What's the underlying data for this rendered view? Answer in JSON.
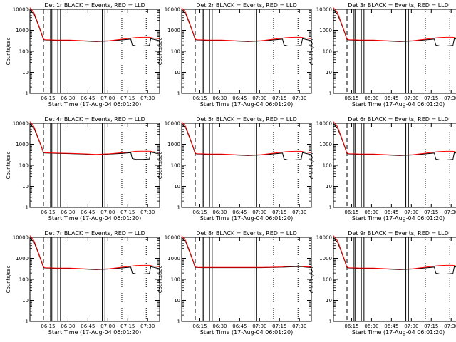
{
  "page": {
    "background": "#ffffff",
    "foreground": "#000000",
    "lld_color": "#ff0000"
  },
  "chart_data": {
    "type": "line",
    "grid": "3x3",
    "ylabel": "Counts/sec",
    "xlabel": "Start Time (17-Aug-04 06:01:20)",
    "y_scale": "log",
    "ylim": [
      1,
      10000
    ],
    "y_ticks": [
      "1",
      "10",
      "100",
      "1000",
      "10000"
    ],
    "xlim": [
      "06:01:20",
      "07:39:00"
    ],
    "x_ticks": [
      "06:15",
      "06:30",
      "06:45",
      "07:00",
      "07:15",
      "07:30"
    ],
    "legend_text": "BLACK = Events, RED = LLD",
    "series_names": [
      "Events",
      "LLD"
    ],
    "time_minutes_from_start": [
      0,
      3,
      6,
      9,
      10,
      11,
      12,
      15,
      20,
      30,
      40,
      50,
      55,
      60,
      70,
      76,
      77,
      80,
      85,
      90,
      91,
      92,
      97.7
    ],
    "marker_lines": {
      "dashed_minutes": [
        10.2
      ],
      "solid_minutes": [
        15.5,
        16.5,
        21,
        23,
        54.5,
        56.5
      ],
      "dotted_minutes": [
        69.2,
        87.6
      ]
    },
    "panels": [
      {
        "title": "Det 1r  BLACK = Events, RED = LLD",
        "events": [
          9000,
          6000,
          2000,
          600,
          380,
          350,
          345,
          340,
          330,
          330,
          310,
          290,
          300,
          310,
          350,
          380,
          200,
          180,
          180,
          190,
          400,
          390,
          320
        ],
        "lld": [
          12000,
          7000,
          2200,
          650,
          400,
          360,
          355,
          350,
          340,
          340,
          320,
          300,
          310,
          320,
          380,
          420,
          430,
          450,
          460,
          460,
          450,
          430,
          400
        ]
      },
      {
        "title": "Det 2r  BLACK = Events, RED = LLD",
        "events": [
          9000,
          6000,
          2000,
          600,
          380,
          350,
          345,
          340,
          330,
          330,
          310,
          290,
          300,
          310,
          350,
          380,
          200,
          180,
          180,
          190,
          400,
          390,
          320
        ],
        "lld": [
          12000,
          7000,
          2200,
          650,
          400,
          360,
          355,
          350,
          340,
          340,
          320,
          300,
          310,
          320,
          380,
          420,
          430,
          450,
          460,
          460,
          450,
          430,
          400
        ]
      },
      {
        "title": "Det 3r  BLACK = Events, RED = LLD",
        "events": [
          9000,
          6000,
          2000,
          600,
          380,
          350,
          345,
          340,
          330,
          330,
          310,
          290,
          300,
          310,
          350,
          380,
          200,
          180,
          180,
          190,
          400,
          390,
          320
        ],
        "lld": [
          12000,
          7000,
          2200,
          650,
          400,
          360,
          355,
          350,
          340,
          340,
          320,
          300,
          310,
          320,
          380,
          420,
          430,
          450,
          460,
          460,
          450,
          430,
          400
        ]
      },
      {
        "title": "Det 4r  BLACK = Events, RED = LLD",
        "events": [
          9000,
          6000,
          2000,
          650,
          420,
          390,
          385,
          380,
          370,
          360,
          340,
          320,
          330,
          340,
          370,
          400,
          210,
          190,
          190,
          200,
          420,
          410,
          340
        ],
        "lld": [
          12000,
          7000,
          2200,
          680,
          430,
          400,
          395,
          390,
          380,
          370,
          350,
          330,
          340,
          350,
          400,
          430,
          440,
          460,
          470,
          470,
          460,
          440,
          410
        ]
      },
      {
        "title": "Det 5r  BLACK = Events, RED = LLD",
        "events": [
          9000,
          6000,
          2000,
          600,
          380,
          350,
          345,
          340,
          330,
          330,
          310,
          290,
          300,
          310,
          350,
          380,
          200,
          180,
          180,
          190,
          400,
          390,
          320
        ],
        "lld": [
          12000,
          7000,
          2200,
          650,
          400,
          360,
          355,
          350,
          340,
          340,
          320,
          300,
          310,
          320,
          380,
          420,
          430,
          450,
          460,
          460,
          450,
          430,
          400
        ]
      },
      {
        "title": "Det 6r  BLACK = Events, RED = LLD",
        "events": [
          9000,
          6000,
          2000,
          600,
          380,
          350,
          345,
          340,
          330,
          330,
          310,
          290,
          300,
          310,
          350,
          380,
          200,
          180,
          180,
          190,
          400,
          390,
          320
        ],
        "lld": [
          12000,
          7000,
          2200,
          650,
          400,
          360,
          355,
          350,
          340,
          340,
          320,
          300,
          310,
          320,
          380,
          420,
          430,
          450,
          460,
          460,
          450,
          430,
          400
        ]
      },
      {
        "title": "Det 7r  BLACK = Events, RED = LLD",
        "events": [
          9000,
          6000,
          2000,
          600,
          380,
          350,
          345,
          340,
          330,
          330,
          310,
          290,
          300,
          310,
          350,
          380,
          200,
          180,
          180,
          190,
          400,
          390,
          320
        ],
        "lld": [
          12000,
          7000,
          2200,
          650,
          400,
          360,
          355,
          350,
          340,
          340,
          320,
          300,
          310,
          320,
          380,
          420,
          430,
          450,
          460,
          460,
          450,
          430,
          400
        ]
      },
      {
        "title": "Det 8r  BLACK = Events, RED = LLD",
        "events": [
          9000,
          6000,
          2000,
          600,
          380,
          370,
          365,
          360,
          360,
          360,
          360,
          360,
          360,
          360,
          370,
          380,
          380,
          390,
          400,
          400,
          400,
          390,
          360
        ],
        "lld": [
          12000,
          7000,
          2200,
          650,
          400,
          380,
          375,
          370,
          370,
          370,
          370,
          370,
          370,
          370,
          380,
          390,
          400,
          410,
          420,
          420,
          410,
          400,
          380
        ]
      },
      {
        "title": "Det 9r  BLACK = Events, RED = LLD",
        "events": [
          9000,
          6000,
          2000,
          600,
          380,
          350,
          345,
          340,
          330,
          330,
          310,
          290,
          300,
          310,
          350,
          380,
          200,
          180,
          180,
          190,
          400,
          390,
          320
        ],
        "lld": [
          12000,
          7000,
          2200,
          650,
          400,
          360,
          355,
          350,
          340,
          340,
          320,
          300,
          310,
          320,
          380,
          420,
          430,
          450,
          460,
          460,
          450,
          430,
          400
        ]
      }
    ]
  }
}
